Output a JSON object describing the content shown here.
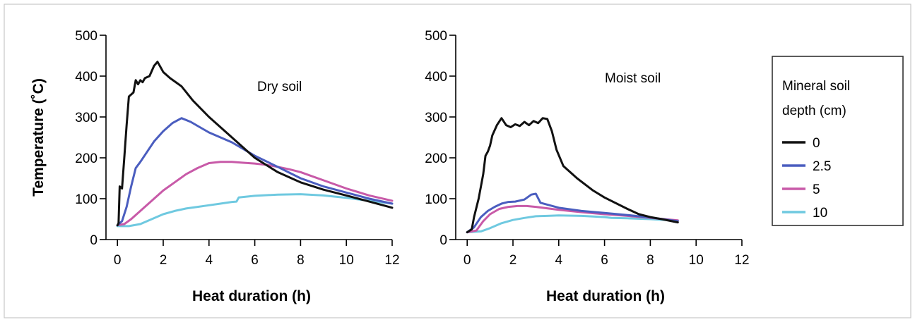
{
  "chart_data": [
    {
      "type": "line",
      "panel": "left",
      "annotation": "Dry soil",
      "xlabel": "Heat duration (h)",
      "ylabel": "Temperature (˚C)",
      "xlim": [
        -0.5,
        12
      ],
      "ylim": [
        0,
        500
      ],
      "xticks": [
        0,
        2,
        4,
        6,
        8,
        10,
        12
      ],
      "yticks": [
        0,
        100,
        200,
        300,
        400,
        500
      ],
      "series": [
        {
          "name": "0",
          "color": "#111111",
          "points": [
            [
              0,
              35
            ],
            [
              0.05,
              40
            ],
            [
              0.1,
              130
            ],
            [
              0.2,
              125
            ],
            [
              0.3,
              200
            ],
            [
              0.4,
              280
            ],
            [
              0.5,
              350
            ],
            [
              0.7,
              360
            ],
            [
              0.8,
              390
            ],
            [
              0.9,
              380
            ],
            [
              1.0,
              390
            ],
            [
              1.1,
              385
            ],
            [
              1.2,
              395
            ],
            [
              1.4,
              400
            ],
            [
              1.6,
              425
            ],
            [
              1.75,
              435
            ],
            [
              1.9,
              420
            ],
            [
              2.0,
              410
            ],
            [
              2.3,
              395
            ],
            [
              2.8,
              375
            ],
            [
              3.3,
              340
            ],
            [
              4.0,
              300
            ],
            [
              5.0,
              250
            ],
            [
              6.0,
              200
            ],
            [
              7.0,
              165
            ],
            [
              8.0,
              140
            ],
            [
              9.0,
              122
            ],
            [
              10.0,
              108
            ],
            [
              11.0,
              93
            ],
            [
              12.0,
              78
            ]
          ]
        },
        {
          "name": "2.5",
          "color": "#4a5dbf",
          "points": [
            [
              0,
              35
            ],
            [
              0.2,
              45
            ],
            [
              0.4,
              80
            ],
            [
              0.6,
              130
            ],
            [
              0.8,
              175
            ],
            [
              1.0,
              190
            ],
            [
              1.3,
              215
            ],
            [
              1.6,
              240
            ],
            [
              2.0,
              265
            ],
            [
              2.4,
              285
            ],
            [
              2.8,
              297
            ],
            [
              3.2,
              288
            ],
            [
              3.6,
              275
            ],
            [
              4.0,
              262
            ],
            [
              5.0,
              238
            ],
            [
              6.0,
              205
            ],
            [
              7.0,
              178
            ],
            [
              8.0,
              150
            ],
            [
              9.0,
              130
            ],
            [
              10.0,
              115
            ],
            [
              11.0,
              100
            ],
            [
              12.0,
              88
            ]
          ]
        },
        {
          "name": "5",
          "color": "#c85aa8",
          "points": [
            [
              0,
              35
            ],
            [
              0.3,
              38
            ],
            [
              0.6,
              50
            ],
            [
              1.0,
              70
            ],
            [
              1.5,
              95
            ],
            [
              2.0,
              120
            ],
            [
              2.5,
              140
            ],
            [
              3.0,
              160
            ],
            [
              3.5,
              175
            ],
            [
              4.0,
              187
            ],
            [
              4.5,
              190
            ],
            [
              5.0,
              190
            ],
            [
              5.5,
              188
            ],
            [
              6.0,
              186
            ],
            [
              6.5,
              183
            ],
            [
              7.0,
              178
            ],
            [
              7.5,
              172
            ],
            [
              8.0,
              165
            ],
            [
              9.0,
              145
            ],
            [
              10.0,
              125
            ],
            [
              11.0,
              108
            ],
            [
              12.0,
              95
            ]
          ]
        },
        {
          "name": "10",
          "color": "#6fc9e0",
          "points": [
            [
              0,
              33
            ],
            [
              0.5,
              33
            ],
            [
              1.0,
              38
            ],
            [
              1.5,
              50
            ],
            [
              2.0,
              62
            ],
            [
              2.5,
              70
            ],
            [
              3.0,
              76
            ],
            [
              3.5,
              80
            ],
            [
              4.0,
              84
            ],
            [
              4.5,
              88
            ],
            [
              5.0,
              92
            ],
            [
              5.2,
              93
            ],
            [
              5.3,
              103
            ],
            [
              6.0,
              107
            ],
            [
              7.0,
              110
            ],
            [
              8.0,
              111
            ],
            [
              9.0,
              108
            ],
            [
              10.0,
              102
            ],
            [
              11.0,
              95
            ],
            [
              12.0,
              88
            ]
          ]
        }
      ]
    },
    {
      "type": "line",
      "panel": "right",
      "annotation": "Moist soil",
      "xlabel": "Heat duration (h)",
      "ylabel": "",
      "xlim": [
        -0.5,
        12
      ],
      "ylim": [
        0,
        500
      ],
      "xticks": [
        0,
        2,
        4,
        6,
        8,
        10,
        12
      ],
      "yticks": [
        0,
        100,
        200,
        300,
        400,
        500
      ],
      "series": [
        {
          "name": "0",
          "color": "#111111",
          "points": [
            [
              0,
              18
            ],
            [
              0.2,
              25
            ],
            [
              0.3,
              55
            ],
            [
              0.5,
              100
            ],
            [
              0.7,
              160
            ],
            [
              0.8,
              205
            ],
            [
              0.9,
              215
            ],
            [
              1.0,
              230
            ],
            [
              1.1,
              255
            ],
            [
              1.3,
              280
            ],
            [
              1.5,
              297
            ],
            [
              1.7,
              280
            ],
            [
              1.9,
              275
            ],
            [
              2.1,
              282
            ],
            [
              2.3,
              278
            ],
            [
              2.5,
              288
            ],
            [
              2.7,
              280
            ],
            [
              2.9,
              290
            ],
            [
              3.1,
              285
            ],
            [
              3.3,
              297
            ],
            [
              3.5,
              295
            ],
            [
              3.7,
              265
            ],
            [
              3.9,
              220
            ],
            [
              4.2,
              180
            ],
            [
              4.8,
              150
            ],
            [
              5.5,
              120
            ],
            [
              6.0,
              103
            ],
            [
              7.0,
              75
            ],
            [
              7.5,
              62
            ],
            [
              8.0,
              55
            ],
            [
              8.5,
              50
            ],
            [
              9.2,
              42
            ]
          ]
        },
        {
          "name": "2.5",
          "color": "#4a5dbf",
          "points": [
            [
              0,
              18
            ],
            [
              0.3,
              30
            ],
            [
              0.6,
              55
            ],
            [
              0.9,
              70
            ],
            [
              1.2,
              80
            ],
            [
              1.5,
              88
            ],
            [
              1.8,
              92
            ],
            [
              2.1,
              93
            ],
            [
              2.5,
              98
            ],
            [
              2.8,
              110
            ],
            [
              3.0,
              112
            ],
            [
              3.2,
              90
            ],
            [
              4.0,
              78
            ],
            [
              5.0,
              70
            ],
            [
              6.0,
              65
            ],
            [
              7.0,
              60
            ],
            [
              8.0,
              54
            ],
            [
              9.2,
              45
            ]
          ]
        },
        {
          "name": "5",
          "color": "#c85aa8",
          "points": [
            [
              0,
              18
            ],
            [
              0.4,
              22
            ],
            [
              0.7,
              45
            ],
            [
              1.0,
              62
            ],
            [
              1.4,
              75
            ],
            [
              1.8,
              80
            ],
            [
              2.2,
              82
            ],
            [
              2.6,
              82
            ],
            [
              3.0,
              80
            ],
            [
              4.0,
              73
            ],
            [
              5.0,
              67
            ],
            [
              6.0,
              62
            ],
            [
              7.0,
              58
            ],
            [
              8.0,
              53
            ],
            [
              9.2,
              47
            ]
          ]
        },
        {
          "name": "10",
          "color": "#6fc9e0",
          "points": [
            [
              0,
              18
            ],
            [
              0.6,
              20
            ],
            [
              1.0,
              28
            ],
            [
              1.5,
              40
            ],
            [
              2.0,
              48
            ],
            [
              2.5,
              53
            ],
            [
              3.0,
              57
            ],
            [
              3.5,
              58
            ],
            [
              4.0,
              59
            ],
            [
              5.0,
              58
            ],
            [
              6.0,
              55
            ],
            [
              6.3,
              53
            ],
            [
              7.0,
              52
            ],
            [
              8.0,
              50
            ],
            [
              9.2,
              46
            ]
          ]
        }
      ]
    }
  ],
  "legend": {
    "title_line1": "Mineral soil",
    "title_line2": "depth (cm)",
    "placement": "right",
    "entries": [
      {
        "label": "0",
        "color": "#111111"
      },
      {
        "label": "2.5",
        "color": "#4a5dbf"
      },
      {
        "label": "5",
        "color": "#c85aa8"
      },
      {
        "label": "10",
        "color": "#6fc9e0"
      }
    ]
  }
}
